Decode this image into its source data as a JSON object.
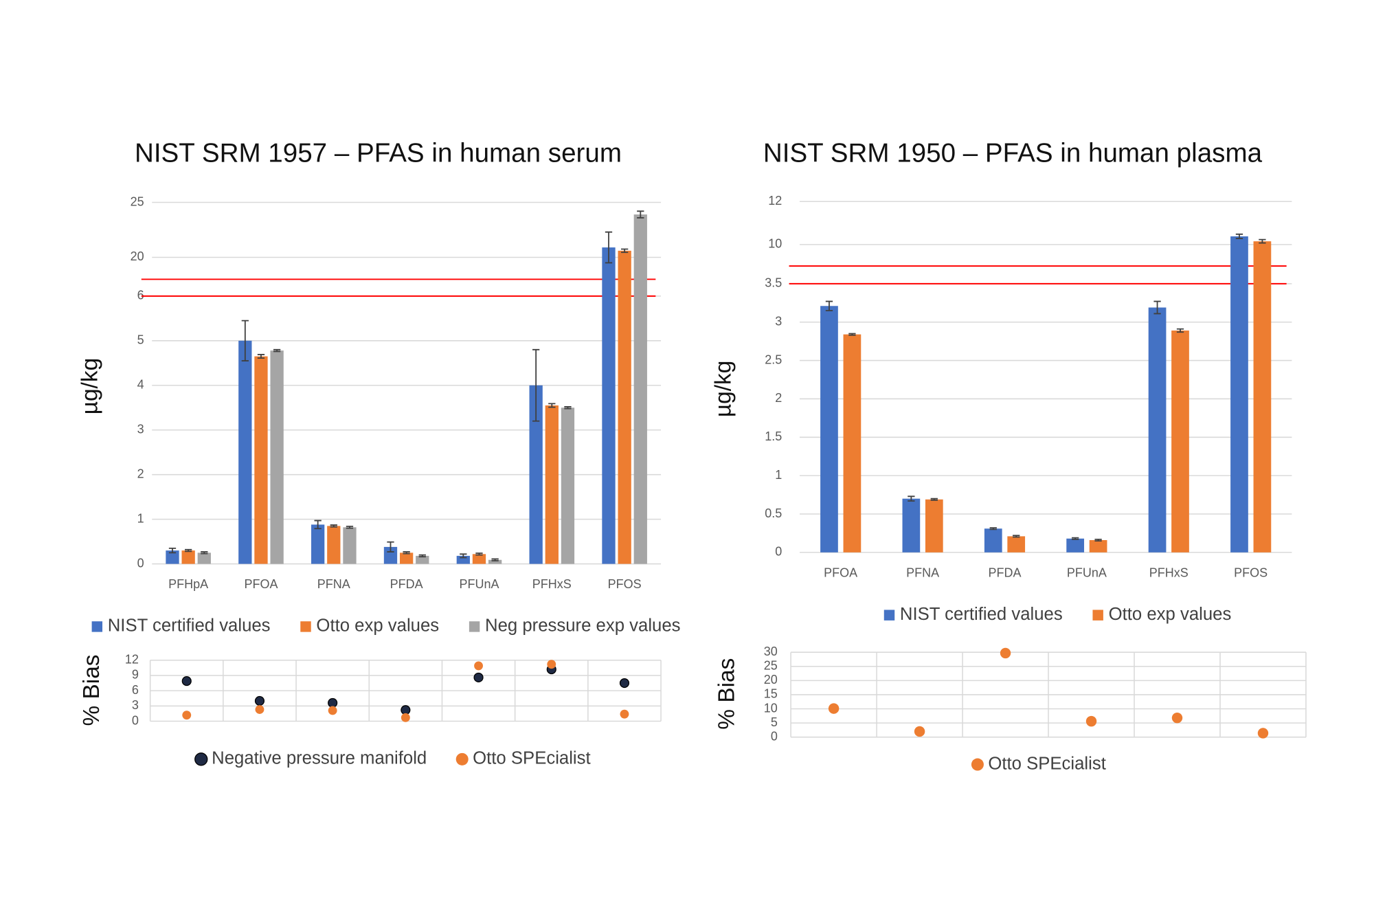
{
  "chart_data": [
    {
      "type": "bar",
      "title": "NIST SRM 1957 – PFAS in human serum",
      "y_label": "µg/kg",
      "categories": [
        "PFHpA",
        "PFOA",
        "PFNA",
        "PFDA",
        "PFUnA",
        "PFHxS",
        "PFOS"
      ],
      "series": [
        {
          "name": "NIST certified values",
          "color": "#4472c4",
          "values": [
            0.3,
            5.0,
            0.88,
            0.38,
            0.18,
            4.0,
            20.9
          ],
          "errors": [
            0.05,
            0.45,
            0.09,
            0.11,
            0.04,
            0.8,
            1.4
          ]
        },
        {
          "name": "Otto exp values",
          "color": "#ed7d31",
          "values": [
            0.3,
            4.65,
            0.85,
            0.25,
            0.22,
            3.55,
            20.6
          ],
          "errors": [
            0.02,
            0.04,
            0.02,
            0.02,
            0.02,
            0.04,
            0.15
          ]
        },
        {
          "name": "Neg pressure exp values",
          "color": "#a5a5a5",
          "values": [
            0.25,
            4.78,
            0.82,
            0.18,
            0.09,
            3.5,
            23.9
          ],
          "errors": [
            0.02,
            0.02,
            0.02,
            0.02,
            0.02,
            0.02,
            0.3
          ]
        }
      ],
      "ylim": [
        0,
        25
      ],
      "y_break": [
        6,
        18
      ],
      "break_color": "#ff0000",
      "yticks": [
        0,
        1,
        2,
        3,
        4,
        5,
        6,
        20,
        25
      ],
      "grid": true,
      "legend": "bottom"
    },
    {
      "type": "scatter",
      "y_label": "% Bias",
      "categories": [
        null,
        null,
        null,
        null,
        null,
        null,
        null
      ],
      "series": [
        {
          "name": "Negative pressure manifold",
          "color": "#1f2a44",
          "values": [
            7.9,
            4.0,
            3.6,
            2.2,
            8.6,
            10.2,
            7.5
          ]
        },
        {
          "name": "Otto SPEcialist",
          "color": "#ed7d31",
          "values": [
            1.2,
            2.3,
            2.1,
            0.7,
            10.9,
            11.2,
            1.4
          ]
        }
      ],
      "ylim": [
        0,
        12
      ],
      "yticks": [
        0,
        3,
        6,
        9,
        12
      ],
      "grid": true,
      "legend": "bottom"
    },
    {
      "type": "bar",
      "title": "NIST SRM 1950 – PFAS in human plasma",
      "y_label": "µg/kg",
      "categories": [
        "PFOA",
        "PFNA",
        "PFDA",
        "PFUnA",
        "PFHxS",
        "PFOS"
      ],
      "series": [
        {
          "name": "NIST certified values",
          "color": "#4472c4",
          "values": [
            3.21,
            0.7,
            0.31,
            0.18,
            3.19,
            10.38
          ],
          "errors": [
            0.06,
            0.03,
            0.01,
            0.01,
            0.08,
            0.1
          ]
        },
        {
          "name": "Otto exp values",
          "color": "#ed7d31",
          "values": [
            2.84,
            0.69,
            0.21,
            0.16,
            2.89,
            10.15
          ],
          "errors": [
            0.01,
            0.01,
            0.01,
            0.01,
            0.02,
            0.08
          ]
        }
      ],
      "ylim": [
        0,
        12
      ],
      "y_break": [
        3.5,
        9
      ],
      "break_color": "#ff0000",
      "yticks": [
        0,
        0.5,
        1,
        1.5,
        2,
        2.5,
        3,
        3.5,
        10,
        12
      ],
      "grid": true,
      "legend": "bottom"
    },
    {
      "type": "scatter",
      "y_label": "% Bias",
      "categories": [
        null,
        null,
        null,
        null,
        null,
        null
      ],
      "series": [
        {
          "name": "Otto SPEcialist",
          "color": "#ed7d31",
          "values": [
            10.1,
            2.0,
            29.7,
            5.6,
            6.8,
            1.4
          ]
        }
      ],
      "ylim": [
        0,
        30
      ],
      "yticks": [
        0,
        5,
        10,
        15,
        20,
        25,
        30
      ],
      "grid": true,
      "legend": "bottom"
    }
  ]
}
